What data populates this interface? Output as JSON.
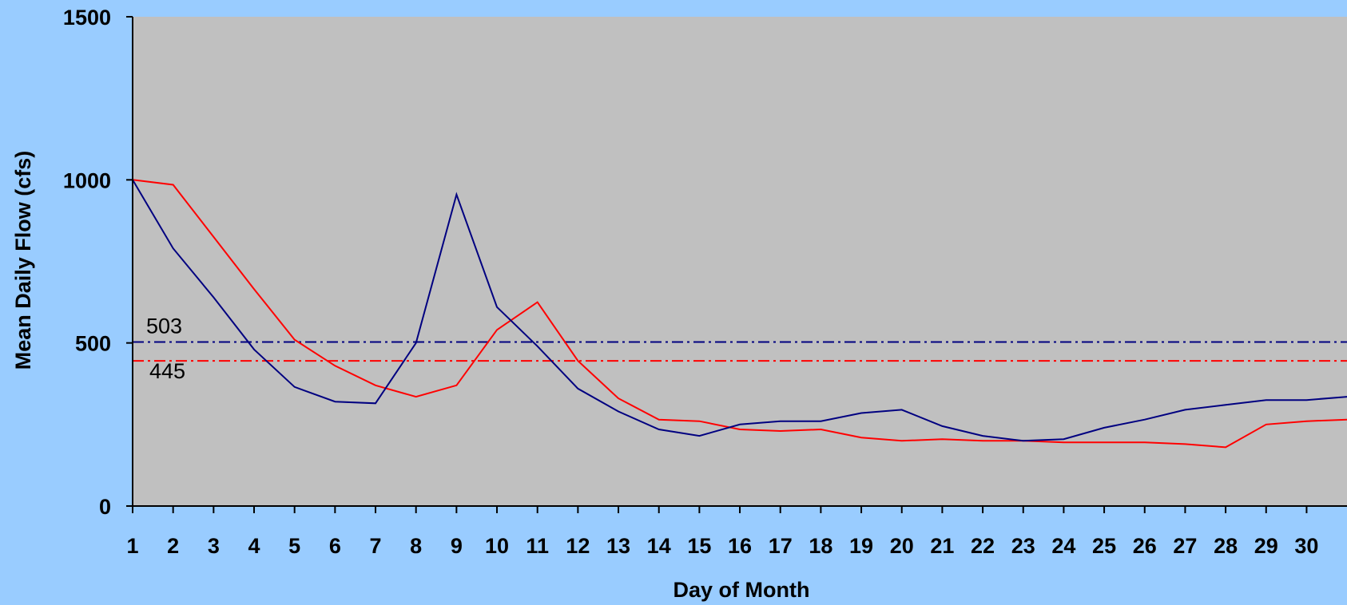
{
  "chart_data": {
    "type": "line",
    "xlabel": "Day of Month",
    "ylabel": "Mean Daily Flow (cfs)",
    "x": [
      1,
      2,
      3,
      4,
      5,
      6,
      7,
      8,
      9,
      10,
      11,
      12,
      13,
      14,
      15,
      16,
      17,
      18,
      19,
      20,
      21,
      22,
      23,
      24,
      25,
      26,
      27,
      28,
      29,
      30,
      31
    ],
    "x_tick_labels": [
      "1",
      "2",
      "3",
      "4",
      "5",
      "6",
      "7",
      "8",
      "9",
      "10",
      "11",
      "12",
      "13",
      "14",
      "15",
      "16",
      "17",
      "18",
      "19",
      "20",
      "21",
      "22",
      "23",
      "24",
      "25",
      "26",
      "27",
      "28",
      "29",
      "30"
    ],
    "y_ticks": [
      0,
      500,
      1000,
      1500
    ],
    "y_tick_labels": [
      "0",
      "500",
      "1000",
      "1500"
    ],
    "xlim": [
      1,
      31
    ],
    "ylim": [
      0,
      1500
    ],
    "grid": false,
    "plot_background": "#c0c0c0",
    "page_background": "#99ccff",
    "series": [
      {
        "color": "#000080",
        "values": [
          1000,
          790,
          640,
          480,
          365,
          320,
          315,
          500,
          955,
          610,
          490,
          360,
          290,
          235,
          215,
          250,
          260,
          260,
          285,
          295,
          245,
          215,
          200,
          205,
          240,
          265,
          295,
          310,
          325,
          325,
          335
        ]
      },
      {
        "color": "#ff0000",
        "values": [
          1000,
          985,
          825,
          665,
          510,
          430,
          370,
          335,
          370,
          540,
          625,
          445,
          330,
          265,
          260,
          235,
          230,
          235,
          210,
          200,
          205,
          200,
          200,
          195,
          195,
          195,
          190,
          180,
          250,
          260,
          265
        ]
      }
    ],
    "reference_lines": [
      {
        "value": 503,
        "label": "503",
        "color": "#000080"
      },
      {
        "value": 445,
        "label": "445",
        "color": "#ff0000"
      }
    ]
  }
}
